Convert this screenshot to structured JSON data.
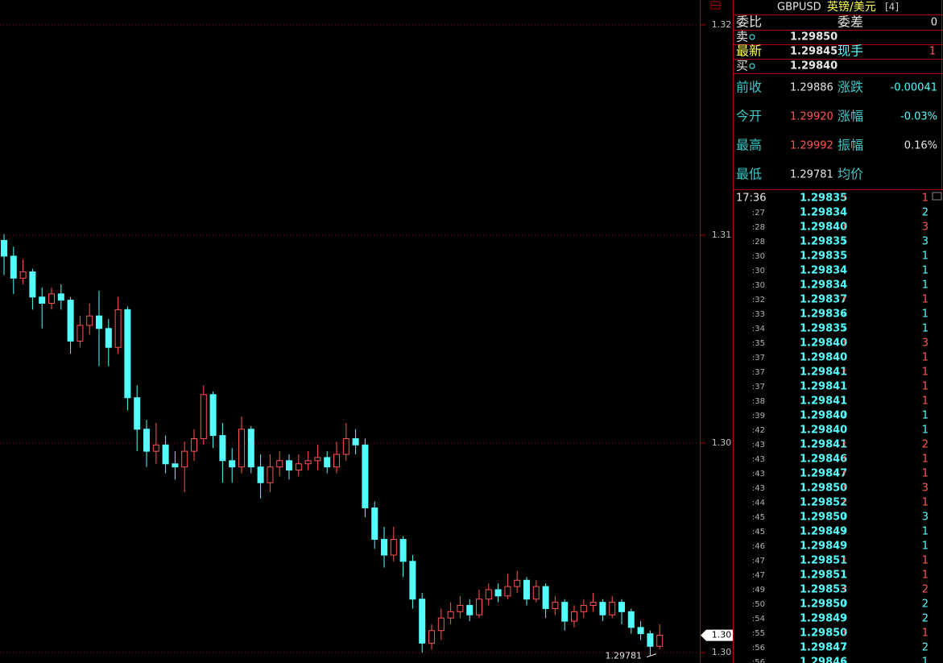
{
  "chart_data": {
    "type": "candlestick",
    "ohlc": [
      [
        1.311,
        1.3112,
        1.3099,
        1.3105
      ],
      [
        1.3105,
        1.3108,
        1.3093,
        1.3098
      ],
      [
        1.3098,
        1.3104,
        1.3096,
        1.31
      ],
      [
        1.31,
        1.3101,
        1.3088,
        1.3092
      ],
      [
        1.3092,
        1.3095,
        1.3082,
        1.309
      ],
      [
        1.309,
        1.3095,
        1.3088,
        1.3093
      ],
      [
        1.3093,
        1.3096,
        1.3088,
        1.3091
      ],
      [
        1.3091,
        1.3092,
        1.3074,
        1.3078
      ],
      [
        1.3078,
        1.3086,
        1.3076,
        1.3083
      ],
      [
        1.3083,
        1.309,
        1.308,
        1.3086
      ],
      [
        1.3086,
        1.3094,
        1.307,
        1.3082
      ],
      [
        1.3082,
        1.3085,
        1.307,
        1.3076
      ],
      [
        1.3076,
        1.3092,
        1.3074,
        1.3088
      ],
      [
        1.3088,
        1.3089,
        1.3056,
        1.306
      ],
      [
        1.306,
        1.3064,
        1.3043,
        1.305
      ],
      [
        1.305,
        1.3053,
        1.3038,
        1.3043
      ],
      [
        1.3043,
        1.3052,
        1.3039,
        1.3045
      ],
      [
        1.3045,
        1.3048,
        1.3036,
        1.3039
      ],
      [
        1.3039,
        1.3043,
        1.3034,
        1.3038
      ],
      [
        1.3038,
        1.3046,
        1.303,
        1.3043
      ],
      [
        1.3043,
        1.305,
        1.304,
        1.3047
      ],
      [
        1.3047,
        1.3064,
        1.3045,
        1.3061
      ],
      [
        1.3061,
        1.3062,
        1.3044,
        1.3048
      ],
      [
        1.3048,
        1.3052,
        1.3033,
        1.304
      ],
      [
        1.304,
        1.3044,
        1.3033,
        1.3038
      ],
      [
        1.3038,
        1.3054,
        1.3036,
        1.305
      ],
      [
        1.305,
        1.3051,
        1.3036,
        1.3038
      ],
      [
        1.3038,
        1.3042,
        1.3028,
        1.3033
      ],
      [
        1.3033,
        1.3042,
        1.303,
        1.3038
      ],
      [
        1.3038,
        1.3043,
        1.3035,
        1.304
      ],
      [
        1.304,
        1.3042,
        1.3034,
        1.3037
      ],
      [
        1.3037,
        1.3042,
        1.3035,
        1.3039
      ],
      [
        1.3039,
        1.3043,
        1.3037,
        1.304
      ],
      [
        1.304,
        1.3045,
        1.3037,
        1.3041
      ],
      [
        1.3041,
        1.3043,
        1.3036,
        1.3038
      ],
      [
        1.3038,
        1.3046,
        1.3036,
        1.3042
      ],
      [
        1.3042,
        1.3052,
        1.304,
        1.3047
      ],
      [
        1.3047,
        1.305,
        1.3042,
        1.3045
      ],
      [
        1.3045,
        1.3047,
        1.3022,
        1.3025
      ],
      [
        1.3025,
        1.3027,
        1.3012,
        1.3015
      ],
      [
        1.3015,
        1.3019,
        1.3006,
        1.301
      ],
      [
        1.301,
        1.3019,
        1.3008,
        1.3015
      ],
      [
        1.3015,
        1.3016,
        1.3003,
        1.3008
      ],
      [
        1.3008,
        1.301,
        1.2993,
        1.2996
      ],
      [
        1.2996,
        1.2998,
        1.2979,
        1.2982
      ],
      [
        1.2982,
        1.2988,
        1.298,
        1.2986
      ],
      [
        1.2986,
        1.2993,
        1.2983,
        1.299
      ],
      [
        1.299,
        1.2995,
        1.2988,
        1.2992
      ],
      [
        1.2992,
        1.2997,
        1.299,
        1.2994
      ],
      [
        1.2994,
        1.2996,
        1.2989,
        1.2991
      ],
      [
        1.2991,
        1.2999,
        1.299,
        1.2996
      ],
      [
        1.2996,
        1.3001,
        1.2994,
        1.2999
      ],
      [
        1.2999,
        1.3001,
        1.2995,
        1.2997
      ],
      [
        1.2997,
        1.3004,
        1.2996,
        1.3
      ],
      [
        1.3,
        1.3005,
        1.2998,
        1.3002
      ],
      [
        1.3002,
        1.3003,
        1.2994,
        1.2996
      ],
      [
        1.2996,
        1.3002,
        1.2995,
        1.3
      ],
      [
        1.3,
        1.3001,
        1.299,
        1.2993
      ],
      [
        1.2993,
        1.2997,
        1.2991,
        1.2995
      ],
      [
        1.2995,
        1.2996,
        1.2986,
        1.2989
      ],
      [
        1.2989,
        1.2994,
        1.2987,
        1.2992
      ],
      [
        1.2992,
        1.2996,
        1.299,
        1.2994
      ],
      [
        1.2994,
        1.2998,
        1.2992,
        1.2995
      ],
      [
        1.2995,
        1.2996,
        1.2989,
        1.2991
      ],
      [
        1.2991,
        1.2997,
        1.299,
        1.2995
      ],
      [
        1.2995,
        1.2996,
        1.2988,
        1.2992
      ],
      [
        1.2992,
        1.2993,
        1.2985,
        1.2987
      ],
      [
        1.2987,
        1.2989,
        1.2983,
        1.2985
      ],
      [
        1.2985,
        1.2986,
        1.29781,
        1.2981
      ],
      [
        1.2981,
        1.2988,
        1.298,
        1.29845
      ]
    ],
    "ylim": [
      1.29757,
      1.31864
    ],
    "yticks": [
      {
        "value": 1.31785,
        "label": "1.32"
      },
      {
        "value": 1.31117,
        "label": "1.31"
      },
      {
        "value": 1.30456,
        "label": "1.30"
      },
      {
        "value": 1.2979,
        "label": "1.30"
      }
    ],
    "grid": true,
    "up_color": "#ff5454",
    "down_color": "#54fcfc",
    "last": {
      "value": 1.29845,
      "label": "1.30"
    },
    "low_label": 1.29781
  },
  "quote": {
    "symbol": "GBPUSD",
    "name": "英镑/美元",
    "count": "[4]",
    "weibi_label": "委比",
    "weicha_label": "委差",
    "weicha": "0",
    "sell_label": "卖",
    "sell": "1.29850",
    "last_label": "最新",
    "last": "1.29845",
    "hand_label": "现手",
    "hand": "1",
    "buy_label": "买",
    "buy": "1.29840",
    "stats": [
      [
        "前收",
        "1.29886",
        "涨跌",
        "-0.00041"
      ],
      [
        "今开",
        "1.29920",
        "涨幅",
        "-0.03%"
      ],
      [
        "最高",
        "1.29992",
        "振幅",
        "0.16%"
      ],
      [
        "最低",
        "1.29781",
        "均价"
      ]
    ],
    "stat_colors": [
      [
        "#e6e6e6",
        "#54fcfc"
      ],
      [
        "#ff5454",
        "#54fcfc"
      ],
      [
        "#ff5454",
        "#e6e6e6"
      ],
      [
        "#e6e6e6"
      ]
    ]
  },
  "trades": {
    "rows": [
      [
        "17:36",
        "1.29835",
        "↑",
        "1"
      ],
      [
        ":27",
        "1.29834",
        "↓",
        "2"
      ],
      [
        ":28",
        "1.29840",
        "↑",
        "3"
      ],
      [
        ":28",
        "1.29835",
        "↓",
        "3"
      ],
      [
        ":30",
        "1.29835",
        "",
        "1"
      ],
      [
        ":30",
        "1.29834",
        "↓",
        "1"
      ],
      [
        ":30",
        "1.29834",
        "",
        "1"
      ],
      [
        ":32",
        "1.29837",
        "↑",
        "1"
      ],
      [
        ":33",
        "1.29836",
        "↓",
        "1"
      ],
      [
        ":34",
        "1.29835",
        "↓",
        "1"
      ],
      [
        ":35",
        "1.29840",
        "↑",
        "3"
      ],
      [
        ":37",
        "1.29840",
        "",
        "1"
      ],
      [
        ":37",
        "1.29841",
        "↑",
        "1"
      ],
      [
        ":37",
        "1.29841",
        "",
        "1"
      ],
      [
        ":38",
        "1.29841",
        "",
        "1"
      ],
      [
        ":39",
        "1.29840",
        "↓",
        "1"
      ],
      [
        ":42",
        "1.29840",
        "",
        "1"
      ],
      [
        ":43",
        "1.29841",
        "↑",
        "2"
      ],
      [
        ":43",
        "1.29846",
        "↑",
        "1"
      ],
      [
        ":43",
        "1.29847",
        "↑",
        "1"
      ],
      [
        ":43",
        "1.29850",
        "↑",
        "3"
      ],
      [
        ":44",
        "1.29852",
        "↑",
        "1"
      ],
      [
        ":45",
        "1.29850",
        "↓",
        "3"
      ],
      [
        ":45",
        "1.29849",
        "↓",
        "1"
      ],
      [
        ":46",
        "1.29849",
        "",
        "1"
      ],
      [
        ":47",
        "1.29851",
        "↑",
        "1"
      ],
      [
        ":47",
        "1.29851",
        "",
        "1"
      ],
      [
        ":49",
        "1.29853",
        "↑",
        "2"
      ],
      [
        ":50",
        "1.29850",
        "↓",
        "2"
      ],
      [
        ":54",
        "1.29849",
        "↓",
        "2"
      ],
      [
        ":55",
        "1.29850",
        "↑",
        "1"
      ],
      [
        ":56",
        "1.29847",
        "↓",
        "2"
      ],
      [
        ":56",
        "1.29846",
        "↓",
        "1"
      ]
    ],
    "volume_colors": [
      "#ff5454",
      "#54fcfc",
      "#ff5454",
      "#54fcfc",
      "#54fcfc",
      "#54fcfc",
      "#54fcfc",
      "#ff5454",
      "#54fcfc",
      "#54fcfc",
      "#ff5454",
      "#ff5454",
      "#ff5454",
      "#ff5454",
      "#ff5454",
      "#54fcfc",
      "#54fcfc",
      "#ff5454",
      "#ff5454",
      "#ff5454",
      "#ff5454",
      "#ff5454",
      "#54fcfc",
      "#54fcfc",
      "#54fcfc",
      "#ff5454",
      "#ff5454",
      "#ff5454",
      "#54fcfc",
      "#54fcfc",
      "#ff5454",
      "#54fcfc",
      "#54fcfc"
    ]
  }
}
